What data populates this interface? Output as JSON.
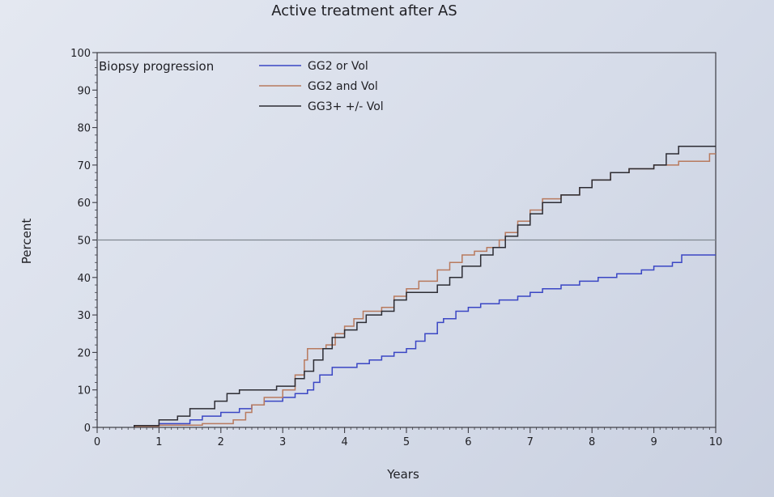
{
  "chart_data": {
    "type": "line",
    "title": "Active treatment after AS",
    "xlabel": "Years",
    "ylabel": "Percent",
    "panel_label": "Biopsy progression",
    "xlim": [
      0,
      10
    ],
    "ylim": [
      0,
      100
    ],
    "x_ticks": [
      "0",
      "1",
      "2",
      "3",
      "4",
      "5",
      "6",
      "7",
      "8",
      "9",
      "10"
    ],
    "y_ticks": [
      "0",
      "10",
      "20",
      "30",
      "40",
      "50",
      "60",
      "70",
      "80",
      "90",
      "100"
    ],
    "grid": false,
    "legend_position": "top",
    "reference_line": {
      "y": 50,
      "color": "#808890"
    },
    "series": [
      {
        "name": "GG2 or Vol",
        "color": "#3a46c4",
        "points": [
          [
            0.6,
            0
          ],
          [
            0.6,
            0.5
          ],
          [
            1.0,
            0.5
          ],
          [
            1.0,
            1
          ],
          [
            1.5,
            1
          ],
          [
            1.5,
            2
          ],
          [
            1.7,
            2
          ],
          [
            1.7,
            3
          ],
          [
            2.0,
            3
          ],
          [
            2.0,
            4
          ],
          [
            2.3,
            4
          ],
          [
            2.3,
            5
          ],
          [
            2.5,
            5
          ],
          [
            2.5,
            6
          ],
          [
            2.7,
            6
          ],
          [
            2.7,
            7
          ],
          [
            3.0,
            7
          ],
          [
            3.0,
            8
          ],
          [
            3.2,
            8
          ],
          [
            3.2,
            9
          ],
          [
            3.4,
            9
          ],
          [
            3.4,
            10
          ],
          [
            3.5,
            10
          ],
          [
            3.5,
            12
          ],
          [
            3.6,
            12
          ],
          [
            3.6,
            14
          ],
          [
            3.8,
            14
          ],
          [
            3.8,
            16
          ],
          [
            4.2,
            16
          ],
          [
            4.2,
            17
          ],
          [
            4.4,
            17
          ],
          [
            4.4,
            18
          ],
          [
            4.6,
            18
          ],
          [
            4.6,
            19
          ],
          [
            4.8,
            19
          ],
          [
            4.8,
            20
          ],
          [
            5.0,
            20
          ],
          [
            5.0,
            21
          ],
          [
            5.15,
            21
          ],
          [
            5.15,
            23
          ],
          [
            5.3,
            23
          ],
          [
            5.3,
            25
          ],
          [
            5.5,
            25
          ],
          [
            5.5,
            28
          ],
          [
            5.6,
            28
          ],
          [
            5.6,
            29
          ],
          [
            5.8,
            29
          ],
          [
            5.8,
            31
          ],
          [
            6.0,
            31
          ],
          [
            6.0,
            32
          ],
          [
            6.2,
            32
          ],
          [
            6.2,
            33
          ],
          [
            6.5,
            33
          ],
          [
            6.5,
            34
          ],
          [
            6.8,
            34
          ],
          [
            6.8,
            35
          ],
          [
            7.0,
            35
          ],
          [
            7.0,
            36
          ],
          [
            7.2,
            36
          ],
          [
            7.2,
            37
          ],
          [
            7.5,
            37
          ],
          [
            7.5,
            38
          ],
          [
            7.8,
            38
          ],
          [
            7.8,
            39
          ],
          [
            8.1,
            39
          ],
          [
            8.1,
            40
          ],
          [
            8.4,
            40
          ],
          [
            8.4,
            41
          ],
          [
            8.8,
            41
          ],
          [
            8.8,
            42
          ],
          [
            9.0,
            42
          ],
          [
            9.0,
            43
          ],
          [
            9.3,
            43
          ],
          [
            9.3,
            44
          ],
          [
            9.45,
            44
          ],
          [
            9.45,
            46
          ],
          [
            10.0,
            46
          ]
        ]
      },
      {
        "name": "GG2 and Vol",
        "color": "#b87a5e",
        "points": [
          [
            0.6,
            0
          ],
          [
            0.6,
            0.3
          ],
          [
            1.0,
            0.3
          ],
          [
            1.0,
            0.6
          ],
          [
            1.7,
            0.6
          ],
          [
            1.7,
            1
          ],
          [
            2.2,
            1
          ],
          [
            2.2,
            2
          ],
          [
            2.4,
            2
          ],
          [
            2.4,
            4
          ],
          [
            2.5,
            4
          ],
          [
            2.5,
            6
          ],
          [
            2.7,
            6
          ],
          [
            2.7,
            8
          ],
          [
            3.0,
            8
          ],
          [
            3.0,
            10
          ],
          [
            3.2,
            10
          ],
          [
            3.2,
            14
          ],
          [
            3.35,
            14
          ],
          [
            3.35,
            18
          ],
          [
            3.4,
            18
          ],
          [
            3.4,
            21
          ],
          [
            3.7,
            21
          ],
          [
            3.7,
            22
          ],
          [
            3.85,
            22
          ],
          [
            3.85,
            25
          ],
          [
            4.0,
            25
          ],
          [
            4.0,
            27
          ],
          [
            4.15,
            27
          ],
          [
            4.15,
            29
          ],
          [
            4.3,
            29
          ],
          [
            4.3,
            31
          ],
          [
            4.6,
            31
          ],
          [
            4.6,
            32
          ],
          [
            4.8,
            32
          ],
          [
            4.8,
            35
          ],
          [
            5.0,
            35
          ],
          [
            5.0,
            37
          ],
          [
            5.2,
            37
          ],
          [
            5.2,
            39
          ],
          [
            5.5,
            39
          ],
          [
            5.5,
            42
          ],
          [
            5.7,
            42
          ],
          [
            5.7,
            44
          ],
          [
            5.9,
            44
          ],
          [
            5.9,
            46
          ],
          [
            6.1,
            46
          ],
          [
            6.1,
            47
          ],
          [
            6.3,
            47
          ],
          [
            6.3,
            48
          ],
          [
            6.5,
            48
          ],
          [
            6.5,
            50
          ],
          [
            6.6,
            50
          ],
          [
            6.6,
            52
          ],
          [
            6.8,
            52
          ],
          [
            6.8,
            55
          ],
          [
            7.0,
            55
          ],
          [
            7.0,
            58
          ],
          [
            7.2,
            58
          ],
          [
            7.2,
            61
          ],
          [
            7.5,
            61
          ],
          [
            7.5,
            62
          ],
          [
            7.8,
            62
          ],
          [
            7.8,
            64
          ],
          [
            8.0,
            64
          ],
          [
            8.0,
            66
          ],
          [
            8.3,
            66
          ],
          [
            8.3,
            68
          ],
          [
            8.6,
            68
          ],
          [
            8.6,
            69
          ],
          [
            9.0,
            69
          ],
          [
            9.0,
            70
          ],
          [
            9.4,
            70
          ],
          [
            9.4,
            71
          ],
          [
            9.9,
            71
          ],
          [
            9.9,
            73
          ],
          [
            10.0,
            73
          ]
        ]
      },
      {
        "name": "GG3+ +/- Vol",
        "color": "#2c2c33",
        "points": [
          [
            0.6,
            0
          ],
          [
            0.6,
            0.5
          ],
          [
            1.0,
            0.5
          ],
          [
            1.0,
            2
          ],
          [
            1.3,
            2
          ],
          [
            1.3,
            3
          ],
          [
            1.5,
            3
          ],
          [
            1.5,
            5
          ],
          [
            1.9,
            5
          ],
          [
            1.9,
            7
          ],
          [
            2.1,
            7
          ],
          [
            2.1,
            9
          ],
          [
            2.3,
            9
          ],
          [
            2.3,
            10
          ],
          [
            2.9,
            10
          ],
          [
            2.9,
            11
          ],
          [
            3.2,
            11
          ],
          [
            3.2,
            13
          ],
          [
            3.35,
            13
          ],
          [
            3.35,
            15
          ],
          [
            3.5,
            15
          ],
          [
            3.5,
            18
          ],
          [
            3.65,
            18
          ],
          [
            3.65,
            21
          ],
          [
            3.8,
            21
          ],
          [
            3.8,
            24
          ],
          [
            4.0,
            24
          ],
          [
            4.0,
            26
          ],
          [
            4.2,
            26
          ],
          [
            4.2,
            28
          ],
          [
            4.35,
            28
          ],
          [
            4.35,
            30
          ],
          [
            4.6,
            30
          ],
          [
            4.6,
            31
          ],
          [
            4.8,
            31
          ],
          [
            4.8,
            34
          ],
          [
            5.0,
            34
          ],
          [
            5.0,
            36
          ],
          [
            5.5,
            36
          ],
          [
            5.5,
            38
          ],
          [
            5.7,
            38
          ],
          [
            5.7,
            40
          ],
          [
            5.9,
            40
          ],
          [
            5.9,
            43
          ],
          [
            6.2,
            43
          ],
          [
            6.2,
            46
          ],
          [
            6.4,
            46
          ],
          [
            6.4,
            48
          ],
          [
            6.6,
            48
          ],
          [
            6.6,
            51
          ],
          [
            6.8,
            51
          ],
          [
            6.8,
            54
          ],
          [
            7.0,
            54
          ],
          [
            7.0,
            57
          ],
          [
            7.2,
            57
          ],
          [
            7.2,
            60
          ],
          [
            7.5,
            60
          ],
          [
            7.5,
            62
          ],
          [
            7.8,
            62
          ],
          [
            7.8,
            64
          ],
          [
            8.0,
            64
          ],
          [
            8.0,
            66
          ],
          [
            8.3,
            66
          ],
          [
            8.3,
            68
          ],
          [
            8.6,
            68
          ],
          [
            8.6,
            69
          ],
          [
            9.0,
            69
          ],
          [
            9.0,
            70
          ],
          [
            9.2,
            70
          ],
          [
            9.2,
            73
          ],
          [
            9.4,
            73
          ],
          [
            9.4,
            75
          ],
          [
            10.0,
            75
          ]
        ]
      }
    ]
  }
}
